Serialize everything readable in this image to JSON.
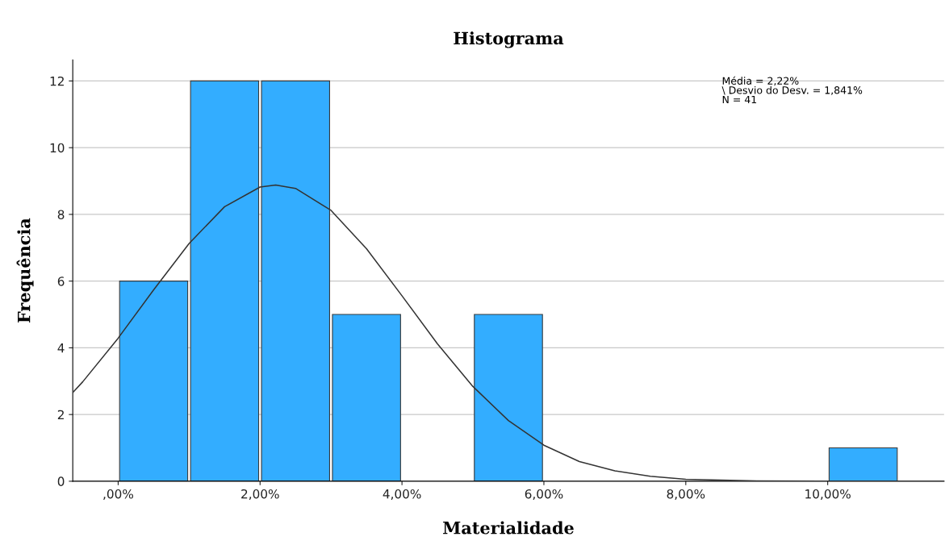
{
  "chart_data": {
    "type": "histogram",
    "title": "Histograma",
    "xlabel": "Materialidade",
    "ylabel": "Frequência",
    "bins": [
      0,
      1,
      2,
      3,
      4,
      5,
      6,
      7,
      8,
      9,
      10,
      11
    ],
    "series": [
      {
        "color": "#33adff",
        "values": [
          6,
          12,
          12,
          5,
          0,
          5,
          0,
          0,
          0,
          0,
          1
        ]
      },
      {
        "type": "line",
        "color": "#333333",
        "x": [
          -0.64,
          -0.5,
          0,
          0.5,
          1,
          1.5,
          2,
          2.22,
          2.5,
          3,
          3.5,
          4,
          4.5,
          5,
          5.5,
          6,
          6.5,
          7,
          7.5,
          8,
          9,
          10,
          11.64
        ],
        "values": [
          2.66,
          2.98,
          4.29,
          5.74,
          7.13,
          8.23,
          8.82,
          8.88,
          8.78,
          8.12,
          6.97,
          5.56,
          4.12,
          2.84,
          1.82,
          1.08,
          0.59,
          0.31,
          0.15,
          0.06,
          0.01,
          0,
          0
        ]
      }
    ],
    "xlim": [
      -0.64,
      11.64
    ],
    "xticks": [
      {
        "value": 0,
        "label": ",00%"
      },
      {
        "value": 2,
        "label": "2,00%"
      },
      {
        "value": 4,
        "label": "4,00%"
      },
      {
        "value": 6,
        "label": "6,00%"
      },
      {
        "value": 8,
        "label": "8,00%"
      },
      {
        "value": 10,
        "label": "10,00%"
      }
    ],
    "ylim": [
      0,
      12.63
    ],
    "yticks": [
      0,
      2,
      4,
      6,
      8,
      10,
      12
    ],
    "grid": "y",
    "annotations": [
      "Média = 2,22%\n\\ Desvio do Desv. = 1,841%\nN = 41"
    ]
  }
}
